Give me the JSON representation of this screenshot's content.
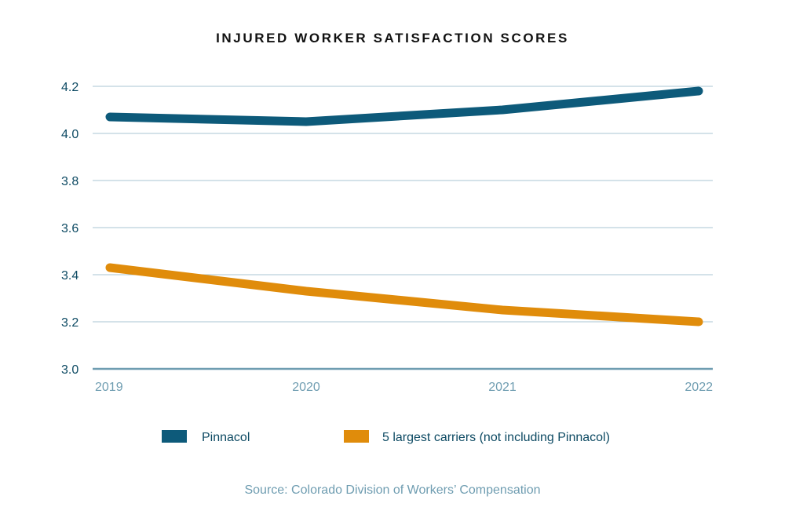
{
  "chart_data": {
    "type": "line",
    "title": "INJURED WORKER SATISFACTION SCORES",
    "xlabel": "",
    "ylabel": "",
    "categories": [
      "2019",
      "2020",
      "2021",
      "2022"
    ],
    "ylim": [
      3.0,
      4.2
    ],
    "yticks": [
      "3.0",
      "3.2",
      "3.4",
      "3.6",
      "3.8",
      "4.0",
      "4.2"
    ],
    "grid": true,
    "legend_position": "bottom",
    "series": [
      {
        "name": "Pinnacol",
        "color": "#0d5a7a",
        "values": [
          4.07,
          4.05,
          4.1,
          4.18
        ]
      },
      {
        "name": "5 largest carriers (not including Pinnacol)",
        "color": "#e08c0b",
        "values": [
          3.43,
          3.33,
          3.25,
          3.2
        ]
      }
    ],
    "source": "Source: Colorado Division of Workers’ Compensation",
    "gridline_color": "#a9c6d3",
    "axis_color": "#6f9db1"
  }
}
